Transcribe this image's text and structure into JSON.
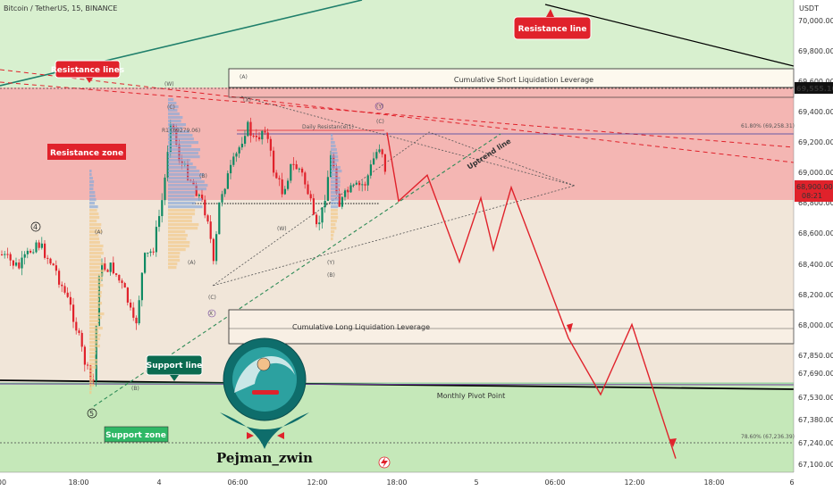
{
  "header": {
    "symbol": "Bitcoin / TetherUS, 15, BINANCE"
  },
  "colors": {
    "resistance_zone": "#f4b6b3",
    "support_zone": "#c5e8b9",
    "uptrend": "#2e8b57",
    "projection": "#e0222b",
    "candle_up": "#0f8a63",
    "candle_down": "#e0222b",
    "label_red": "#e0222b",
    "label_green": "#0b6b50",
    "pivot": "#6a3d9a"
  },
  "labels": {
    "resistance_lines": "Resistance lines",
    "resistance_zone": "Resistance zone",
    "resistance_line": "Resistance line",
    "support_line": "Support line",
    "support_zone": "Support zone",
    "short_liq": "Cumulative Short Liquidation Leverage",
    "long_liq": "Cumulative Long Liquidation Leverage",
    "pivot": "Monthly Pivot Point",
    "daily_res": "Daily Resistance(1)",
    "uptrend": "Uptrend line",
    "fib_618": "61.80% (69,258.31)",
    "fib_786": "78.60% (67,236.39)",
    "fib_r1": "R1 (69279.06)",
    "watermark": "Pejman_zwin",
    "wave": {
      "w4": "4",
      "w5": "5",
      "W": "(W)",
      "X": "X",
      "Y": "(Y)",
      "A": "(A)",
      "B": "(B)",
      "C": "(C)",
      "Ycirc": "(Y)",
      "Xcirc": "X",
      "A2": "(A)",
      "B2": "(B)",
      "C2": "(C)",
      "W2": "(W)",
      "Y2": "(Y)",
      "Xb": "(X)",
      "Ytop": "(Y)"
    }
  },
  "axis": {
    "currency": "USDT",
    "price_ticks": [
      "70,000.00",
      "69,800.00",
      "69,600.00",
      "69,400.00",
      "69,200.00",
      "69,000.00",
      "68,800.00",
      "68,600.00",
      "68,400.00",
      "68,200.00",
      "68,000.00",
      "67,850.00",
      "67,690.00",
      "67,530.00",
      "67,380.00",
      "67,240.00",
      "67,100.00"
    ],
    "time_ticks": [
      "00",
      "18:00",
      "4",
      "06:00",
      "12:00",
      "18:00",
      "5",
      "06:00",
      "12:00",
      "18:00",
      "6"
    ],
    "price_badge": "69,555.10",
    "current_price": "68,900.00",
    "countdown": "08:21"
  },
  "chart_data": {
    "type": "candlestick",
    "title": "Bitcoin / TetherUS, 15, BINANCE",
    "ylim": [
      67050,
      70150
    ],
    "resistance_zone": [
      68810,
      69620
    ],
    "support_zone": [
      67030,
      67570
    ],
    "monthly_pivot": 67560,
    "fib_618": 69258.31,
    "fib_786": 67236.39,
    "current_price": 68900.0,
    "price_badge": 69555.1,
    "projection_path": [
      [
        0,
        69280
      ],
      [
        1,
        68830
      ],
      [
        2,
        69000
      ],
      [
        3,
        68430
      ],
      [
        4,
        68850
      ],
      [
        5,
        68510
      ],
      [
        6,
        68920
      ],
      [
        7,
        67930
      ],
      [
        8,
        67560
      ],
      [
        9,
        68020
      ],
      [
        10,
        67140
      ]
    ],
    "note_candles": "approximate OHLC series reconstructed from the chart (15m candles, data units)"
  }
}
